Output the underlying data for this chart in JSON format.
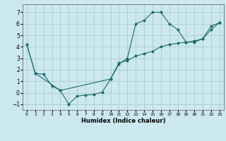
{
  "title": "",
  "xlabel": "Humidex (Indice chaleur)",
  "ylabel": "",
  "background_color": "#cce8ef",
  "grid_color": "#aacccc",
  "line_color": "#1a6b6b",
  "ylim": [
    -1.5,
    7.7
  ],
  "xlim": [
    -0.5,
    23.5
  ],
  "yticks": [
    -1,
    0,
    1,
    2,
    3,
    4,
    5,
    6,
    7
  ],
  "xticks": [
    0,
    1,
    2,
    3,
    4,
    5,
    6,
    7,
    8,
    9,
    10,
    11,
    12,
    13,
    14,
    15,
    16,
    17,
    18,
    19,
    20,
    21,
    22,
    23
  ],
  "line1_x": [
    0,
    1,
    2,
    3,
    4,
    5,
    6,
    7,
    8,
    9,
    10,
    11,
    12,
    13,
    14,
    15,
    16,
    17,
    18,
    19,
    20,
    21,
    22,
    23
  ],
  "line1_y": [
    4.2,
    1.7,
    1.6,
    0.6,
    0.2,
    -1.0,
    -0.3,
    -0.2,
    -0.15,
    0.05,
    1.2,
    2.5,
    3.0,
    6.0,
    6.3,
    7.0,
    7.0,
    6.0,
    5.5,
    4.4,
    4.4,
    4.7,
    5.5,
    6.1
  ],
  "line2_x": [
    0,
    1,
    4,
    10,
    11,
    12,
    13,
    14,
    15,
    16,
    17,
    18,
    19,
    20,
    21,
    22,
    23
  ],
  "line2_y": [
    4.2,
    1.7,
    0.2,
    1.2,
    2.6,
    2.8,
    3.2,
    3.4,
    3.6,
    4.0,
    4.2,
    4.3,
    4.4,
    4.5,
    4.7,
    5.8,
    6.1
  ],
  "xlabel_fontsize": 6.0,
  "tick_fontsize_x": 4.5,
  "tick_fontsize_y": 5.5,
  "linewidth": 0.8,
  "markersize": 1.8
}
